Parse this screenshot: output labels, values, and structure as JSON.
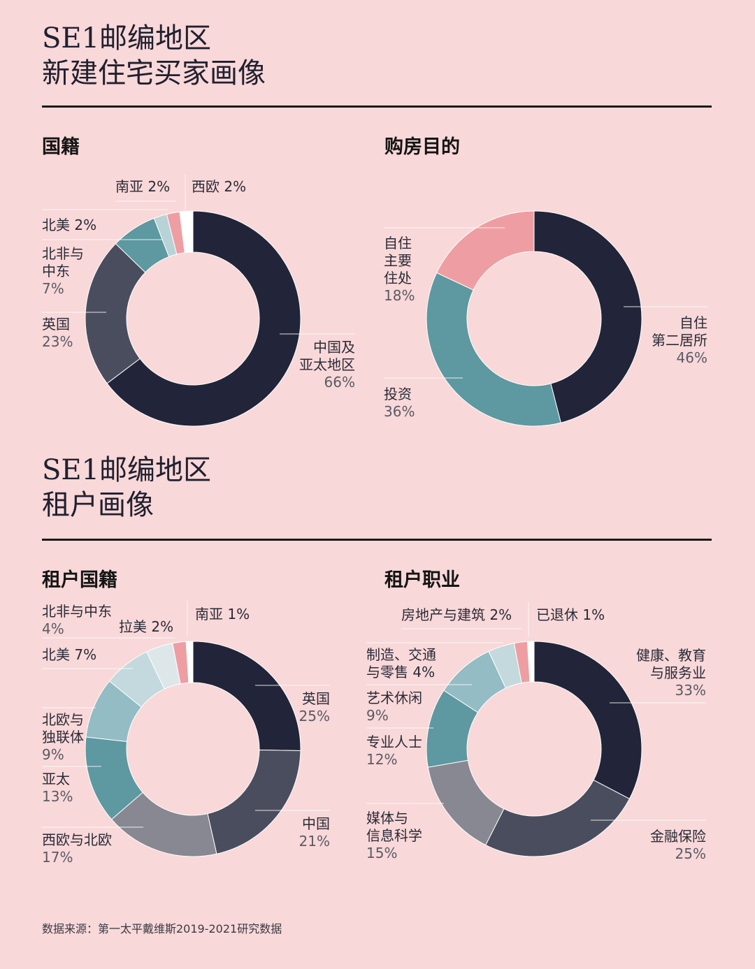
{
  "section1": {
    "title_line1": "SE1邮编地区",
    "title_line2": "新建住宅买家画像"
  },
  "section2": {
    "title_line1": "SE1邮编地区",
    "title_line2": "租户画像"
  },
  "source": "数据来源：第一太平戴维斯2019-2021研究数据",
  "chart_data": [
    {
      "type": "pie",
      "title": "国籍",
      "categories": [
        "中国及亚太地区",
        "英国",
        "北非与中东",
        "北美",
        "南亚",
        "西欧"
      ],
      "values": [
        66,
        23,
        7,
        2,
        2,
        2
      ],
      "labels": [
        "中国及\n亚太地区\n66%",
        "英国\n23%",
        "北非与\n中东\n7%",
        "北美 2%",
        "南亚 2%",
        "西欧 2%"
      ],
      "colors": [
        "#222539",
        "#4a4d5e",
        "#5e98a0",
        "#b7d3d8",
        "#ee9ea2",
        "#ffffff"
      ],
      "donut": true
    },
    {
      "type": "pie",
      "title": "购房目的",
      "categories": [
        "自住第二居所",
        "投资",
        "自住主要住处"
      ],
      "values": [
        46,
        36,
        18
      ],
      "labels": [
        "自住\n第二居所\n46%",
        "投资\n36%",
        "自住\n主要\n住处\n18%"
      ],
      "colors": [
        "#222539",
        "#5e98a0",
        "#ee9ea2"
      ],
      "donut": true
    },
    {
      "type": "pie",
      "title": "租户国籍",
      "categories": [
        "英国",
        "中国",
        "西欧与北欧",
        "亚太",
        "北欧与独联体",
        "北美",
        "北非与中东",
        "拉美",
        "南亚"
      ],
      "values": [
        25,
        21,
        17,
        13,
        9,
        7,
        4,
        2,
        1
      ],
      "labels": [
        "英国\n25%",
        "中国\n21%",
        "西欧与北欧\n17%",
        "亚太\n13%",
        "北欧与\n独联体\n9%",
        "北美 7%",
        "北非与中东\n4%",
        "拉美 2%",
        "南亚 1%"
      ],
      "colors": [
        "#222539",
        "#4a4d5e",
        "#888892",
        "#5e98a0",
        "#93bcc4",
        "#c3d9dd",
        "#dde7ea",
        "#ee9ea2",
        "#ffffff"
      ],
      "donut": true
    },
    {
      "type": "pie",
      "title": "租户职业",
      "categories": [
        "健康、教育与服务业",
        "金融保险",
        "媒体与信息科学",
        "专业人士",
        "艺术休闲",
        "制造、交通与零售",
        "房地产与建筑",
        "已退休"
      ],
      "values": [
        33,
        25,
        15,
        12,
        9,
        4,
        2,
        1
      ],
      "labels": [
        "健康、教育\n与服务业\n33%",
        "金融保险\n25%",
        "媒体与\n信息科学\n15%",
        "专业人士\n12%",
        "艺术休闲\n9%",
        "制造、交通\n与零售 4%",
        "房地产与建筑 2%",
        "已退休 1%"
      ],
      "colors": [
        "#222539",
        "#4a4d5e",
        "#888892",
        "#5e98a0",
        "#93bcc4",
        "#c3d9dd",
        "#ee9ea2",
        "#ffffff"
      ],
      "donut": true
    }
  ]
}
